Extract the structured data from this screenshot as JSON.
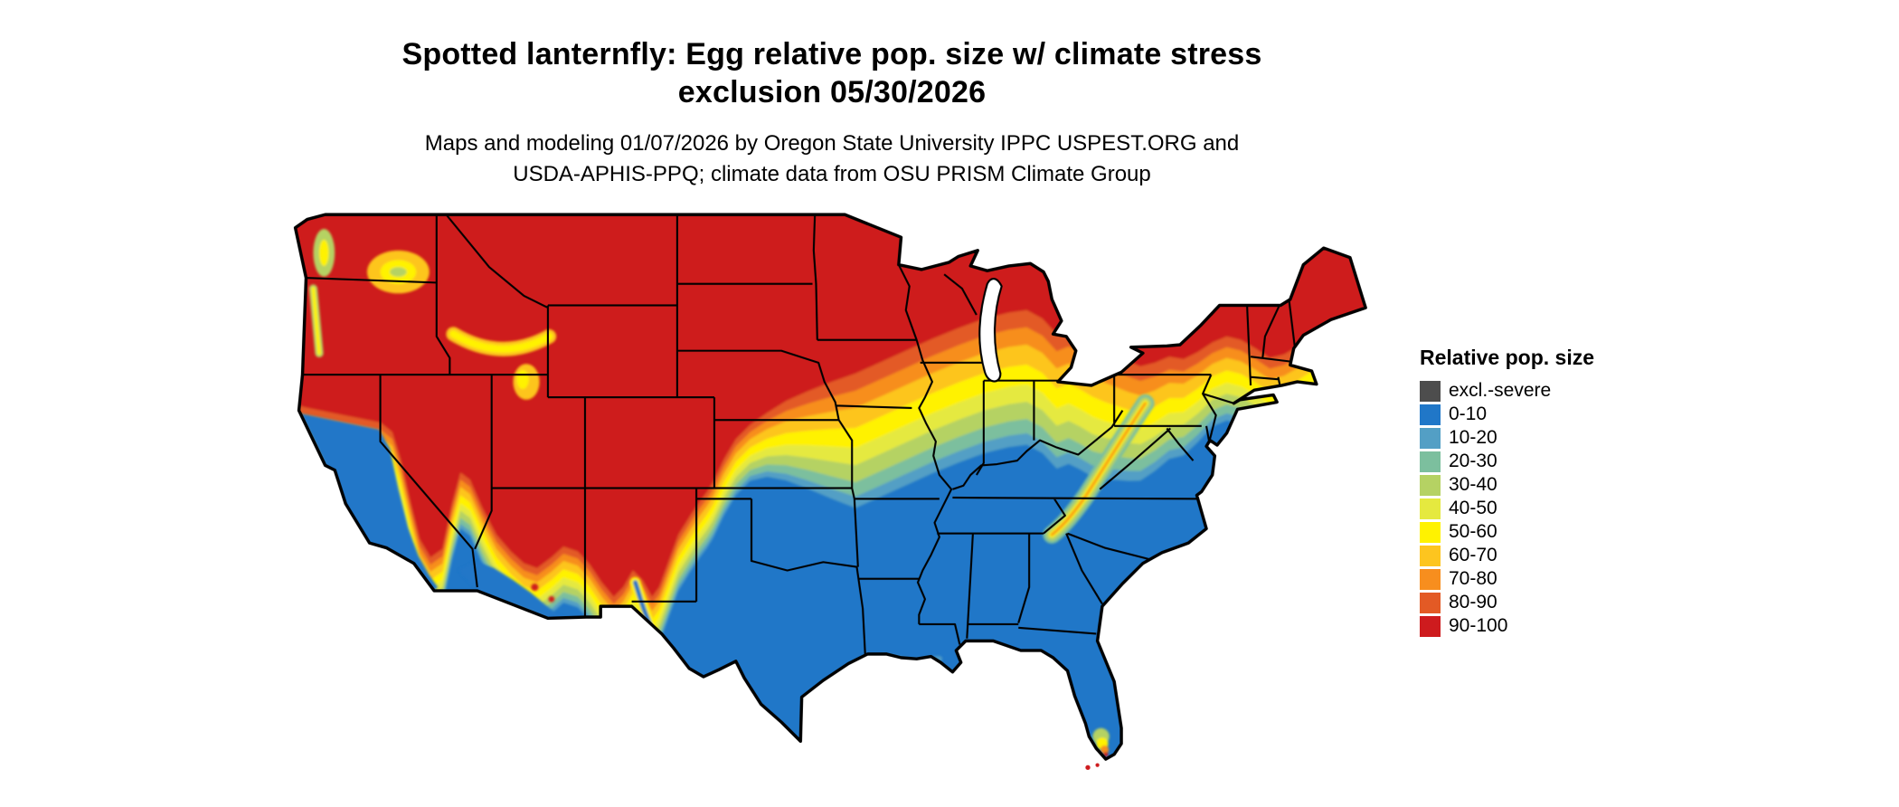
{
  "figure": {
    "title_line1": "Spotted lanternfly: Egg relative pop. size w/ climate stress",
    "title_line2": "exclusion 05/30/2026",
    "subtitle_line1": "Maps and modeling 01/07/2026 by Oregon State University IPPC USPEST.ORG and",
    "subtitle_line2": "USDA-APHIS-PPQ; climate data from OSU PRISM Climate Group"
  },
  "legend": {
    "title": "Relative pop. size",
    "items": [
      {
        "label": "excl.-severe",
        "color": "#4D4D4D"
      },
      {
        "label": "0-10",
        "color": "#2077C8"
      },
      {
        "label": "10-20",
        "color": "#539FC5"
      },
      {
        "label": "20-30",
        "color": "#7CBF9E"
      },
      {
        "label": "30-40",
        "color": "#B5D263"
      },
      {
        "label": "40-50",
        "color": "#E5E93F"
      },
      {
        "label": "50-60",
        "color": "#FFF200"
      },
      {
        "label": "60-70",
        "color": "#FDC51F"
      },
      {
        "label": "70-80",
        "color": "#F78E1E"
      },
      {
        "label": "80-90",
        "color": "#E35A25"
      },
      {
        "label": "90-100",
        "color": "#CE1B1E"
      }
    ]
  },
  "map": {
    "region": "Contiguous United States",
    "type": "raster choropleth with state boundaries",
    "pattern_summary": {
      "northern_tier": "90-100",
      "southern_tier": "0-10",
      "central_transition": "west-to-east orange/yellow/green band through the central latitudes",
      "mountain_west": "high values (70-100) along Cascades, Sierra Nevada and Rocky Mountains",
      "pacific_lowlands_southwest": "low values (0-30) in California valleys and desert Southwest",
      "appalachians": "narrow 30-80 ridge running southwest from Pennsylvania toward North Carolina",
      "south_florida": "isolated 40-100 pocket at the southern tip of Florida"
    }
  }
}
